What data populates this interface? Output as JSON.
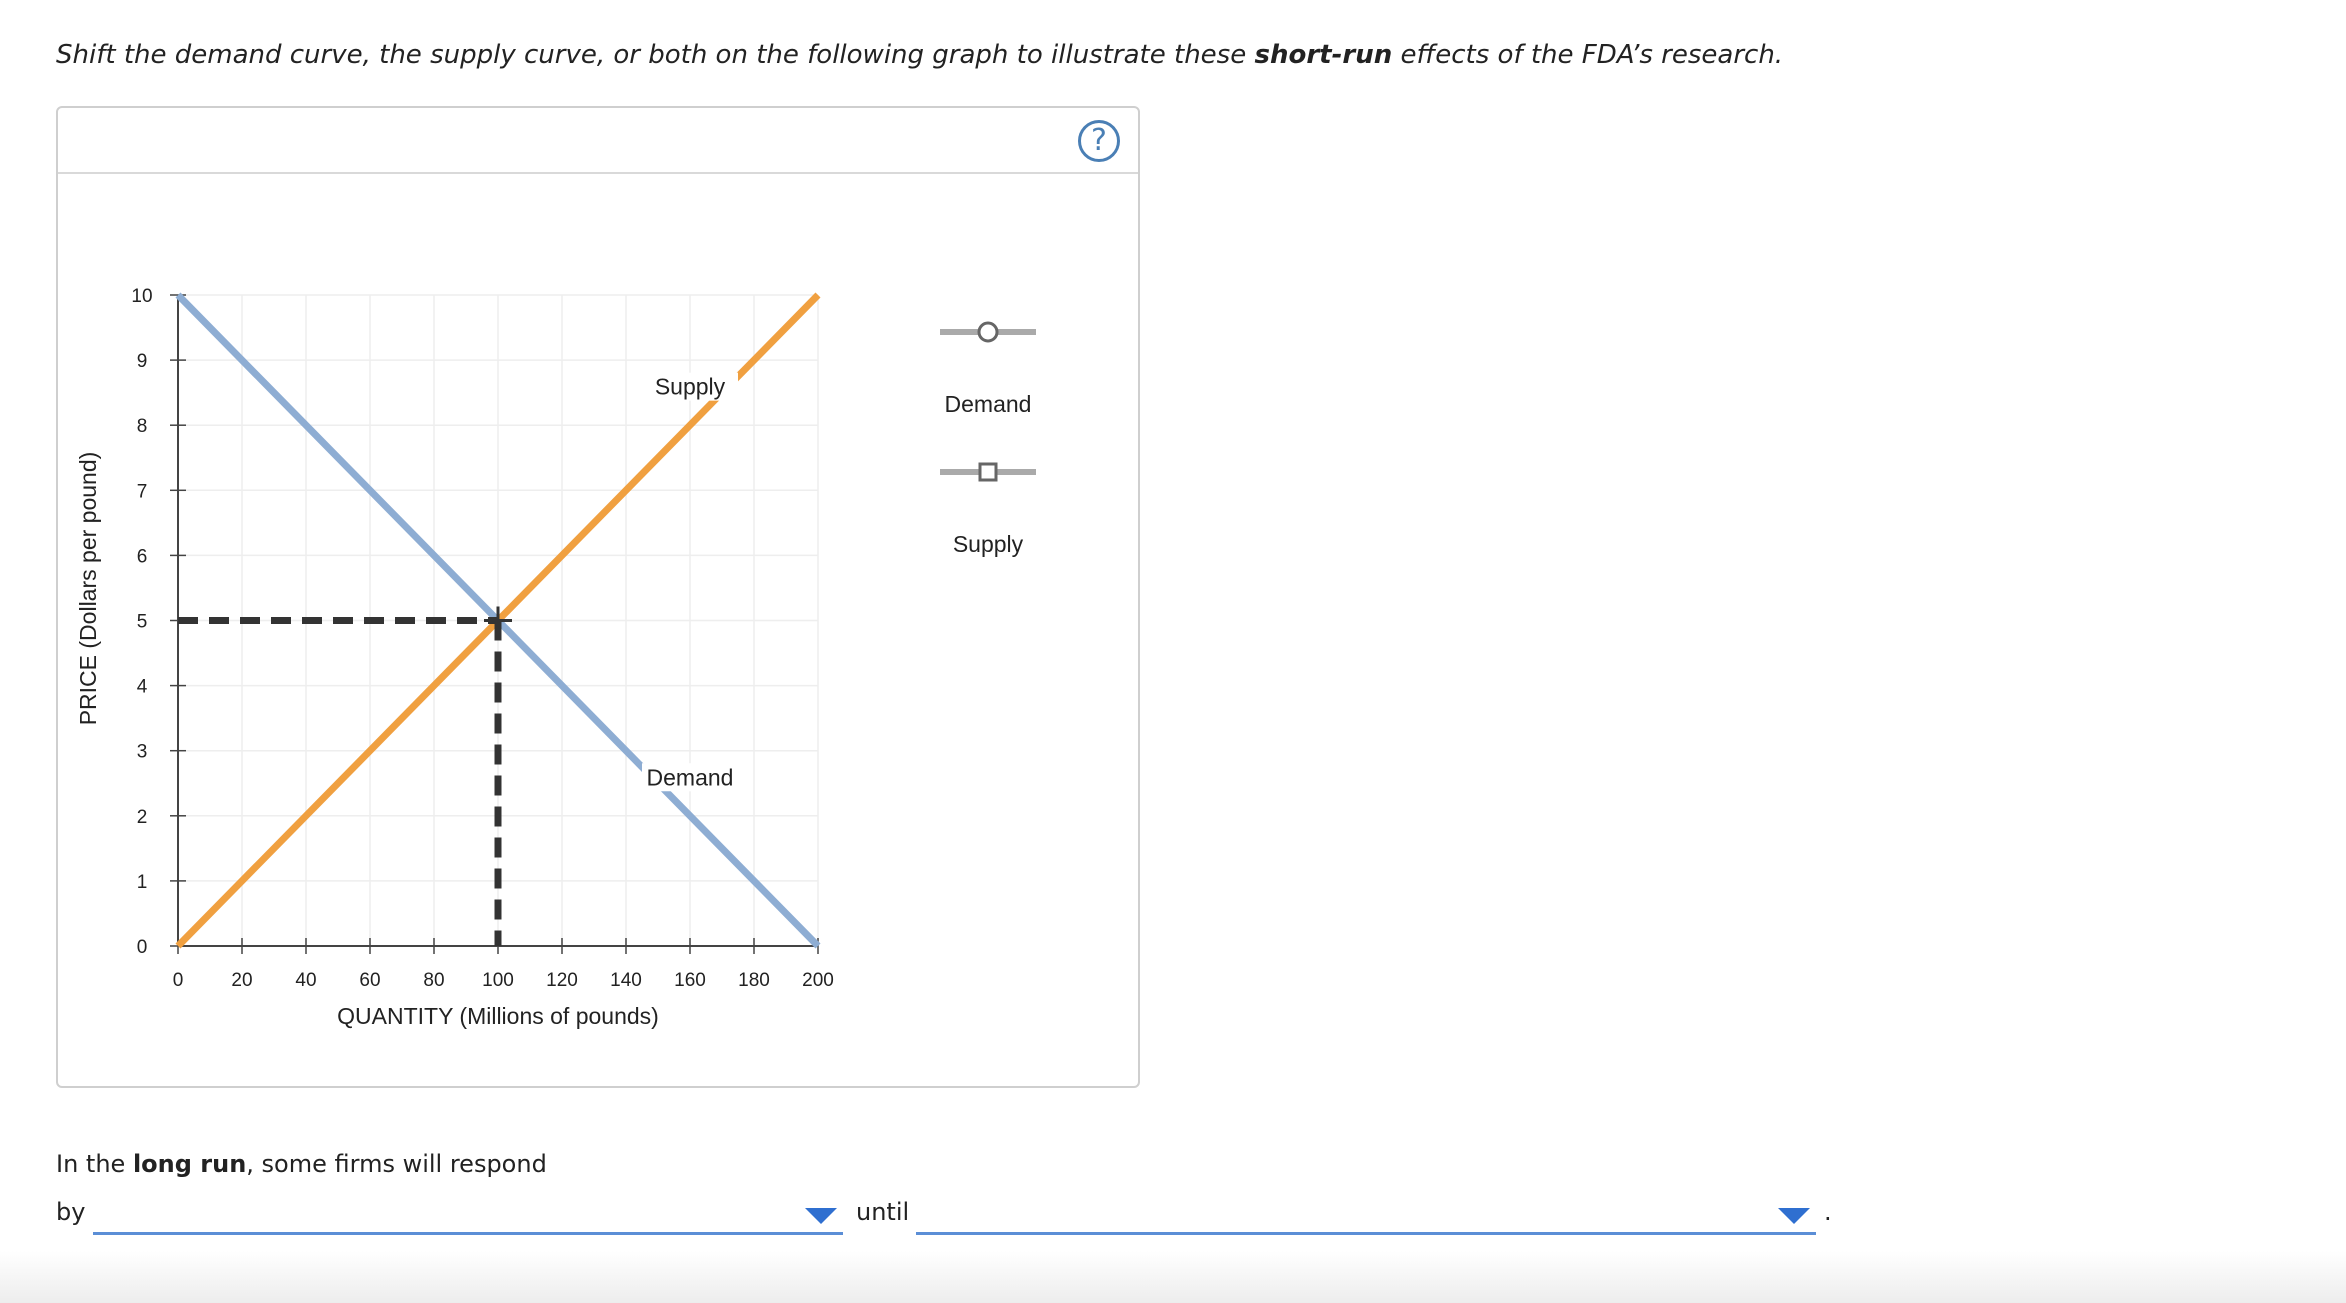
{
  "instruction": {
    "before": "Shift the demand curve, the supply curve, or both on the following graph to illustrate these ",
    "bold": "short-run",
    "after": " effects of the FDA’s research."
  },
  "panel": {
    "help_label": "?"
  },
  "chart_data": {
    "type": "line",
    "xlabel": "QUANTITY (Millions of pounds)",
    "ylabel": "PRICE (Dollars per pound)",
    "xlim": [
      0,
      200
    ],
    "ylim": [
      0,
      10
    ],
    "x_ticks": [
      0,
      20,
      40,
      60,
      80,
      100,
      120,
      140,
      160,
      180,
      200
    ],
    "y_ticks": [
      0,
      1,
      2,
      3,
      4,
      5,
      6,
      7,
      8,
      9,
      10
    ],
    "grid": true,
    "series": [
      {
        "name": "Demand",
        "color": "#8eadd3",
        "points": [
          [
            0,
            10
          ],
          [
            200,
            0
          ]
        ],
        "label": "Demand",
        "label_at": [
          160,
          2.5
        ]
      },
      {
        "name": "Supply",
        "color": "#f0a040",
        "points": [
          [
            0,
            0
          ],
          [
            200,
            10
          ]
        ],
        "label": "Supply",
        "label_at": [
          160,
          8.5
        ]
      }
    ],
    "equilibrium": {
      "x": 100,
      "y": 5
    },
    "legend": [
      {
        "label": "Demand",
        "marker": "circle",
        "color": "#aaaaaa"
      },
      {
        "label": "Supply",
        "marker": "square",
        "color": "#aaaaaa"
      }
    ]
  },
  "long_run": {
    "prefix": "In the ",
    "bold": "long run",
    "suffix": ", some firms will respond",
    "by_label": "by",
    "until_label": "until",
    "period": ".",
    "dropdown1_value": "",
    "dropdown2_value": ""
  }
}
